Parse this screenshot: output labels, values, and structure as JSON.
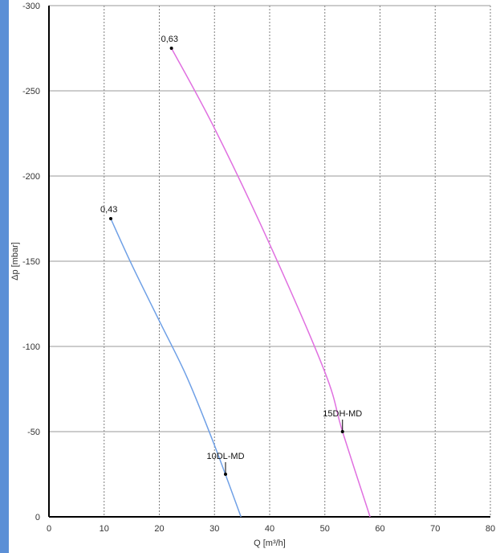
{
  "colors": {
    "left_bar": "#5b8fd6",
    "grid": "#7f7f7f",
    "axis": "#000000"
  },
  "chart_data": {
    "type": "line",
    "title": "",
    "xlabel": "Q [m³/h]",
    "ylabel": "Δp [mbar]",
    "xlim": [
      0,
      80
    ],
    "ylim": [
      0,
      -300
    ],
    "x_ticks": [
      "0",
      "10",
      "20",
      "30",
      "40",
      "50",
      "60",
      "70",
      "80"
    ],
    "y_ticks": [
      "0",
      "-50",
      "-100",
      "-150",
      "-200",
      "-250",
      "-300"
    ],
    "grid": true,
    "series": [
      {
        "name": "10DL-MD",
        "color": "#6fa0e6",
        "points": [
          [
            11.2,
            -175
          ],
          [
            15,
            -148
          ],
          [
            20,
            -115
          ],
          [
            25,
            -82
          ],
          [
            30,
            -42
          ],
          [
            34.8,
            0
          ]
        ],
        "label_point": [
          32,
          -25
        ],
        "start_label": "0,43"
      },
      {
        "name": "15DH-MD",
        "color": "#e070e0",
        "points": [
          [
            22.2,
            -275
          ],
          [
            30,
            -228
          ],
          [
            40,
            -160
          ],
          [
            50,
            -85
          ],
          [
            53.2,
            -50
          ],
          [
            58.2,
            0
          ]
        ],
        "label_point": [
          53.2,
          -50
        ],
        "start_label": "0,63"
      }
    ]
  }
}
